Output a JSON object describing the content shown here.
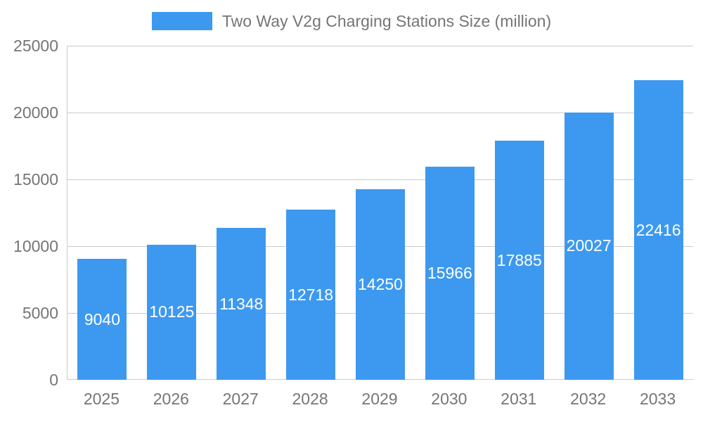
{
  "chart_data": {
    "type": "bar",
    "title": "Two Way V2g Charging Stations Size (million)",
    "categories": [
      "2025",
      "2026",
      "2027",
      "2028",
      "2029",
      "2030",
      "2031",
      "2032",
      "2033"
    ],
    "values": [
      9040,
      10125,
      11348,
      12718,
      14250,
      15966,
      17885,
      20027,
      22416
    ],
    "series": [
      {
        "name": "Two Way V2g Charging Stations Size (million)",
        "values": [
          9040,
          10125,
          11348,
          12718,
          14250,
          15966,
          17885,
          20027,
          22416
        ]
      }
    ],
    "xlabel": "",
    "ylabel": "",
    "ylim": [
      0,
      25000
    ],
    "yticks": [
      0,
      5000,
      10000,
      15000,
      20000,
      25000
    ],
    "grid": true,
    "legend_position": "top-center",
    "bar_color": "#3d99f0",
    "value_label_color": "#ffffff",
    "axis_label_color": "#757575",
    "gridline_color": "#cccccc",
    "value_labels_inside_bars": true
  }
}
